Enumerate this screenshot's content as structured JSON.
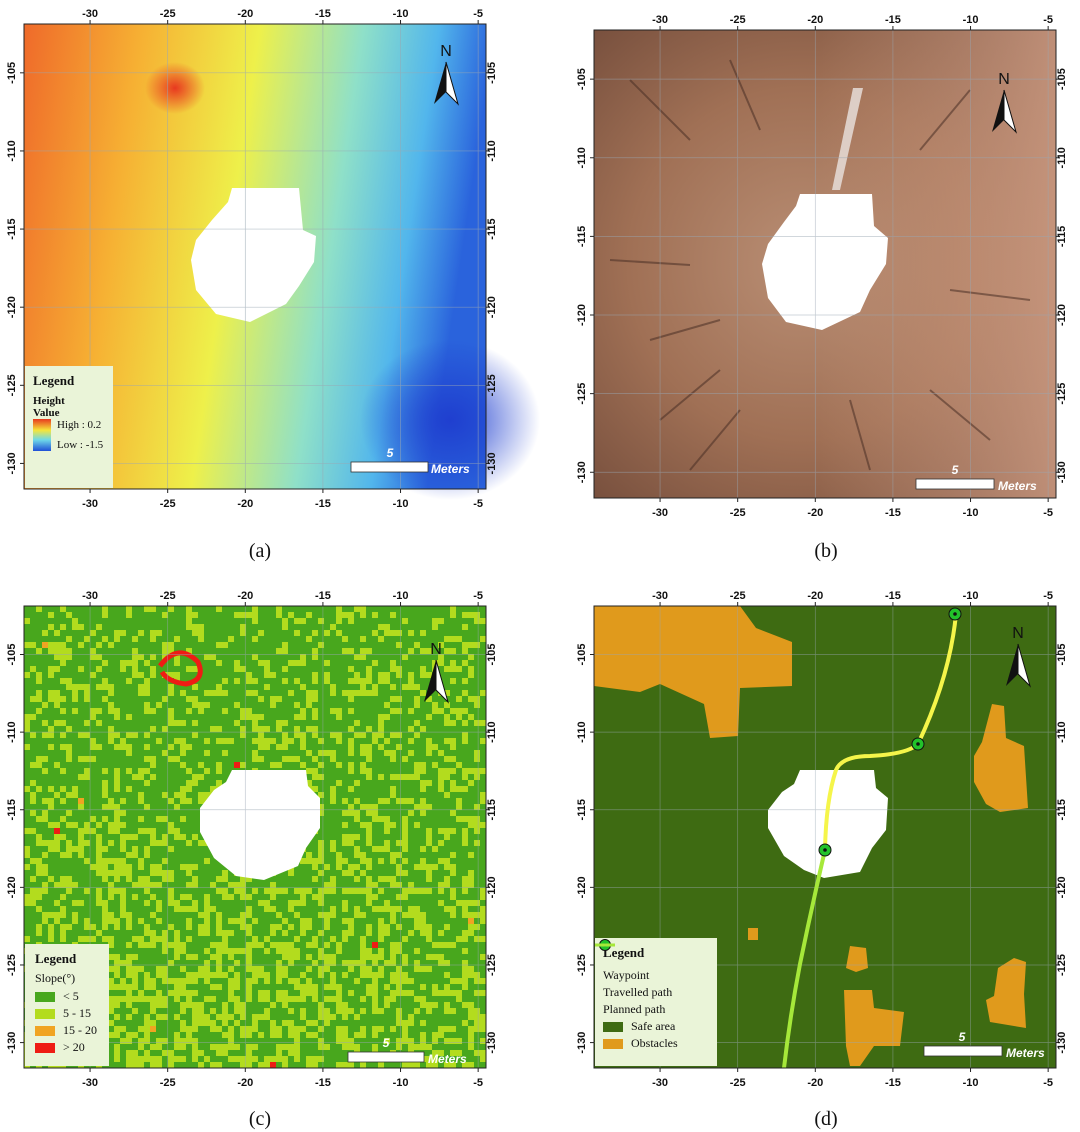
{
  "captions": {
    "a": "(a)",
    "b": "(b)",
    "c": "(c)",
    "d": "(d)"
  },
  "x_ticks": [
    "-30",
    "-25",
    "-20",
    "-15",
    "-10",
    "-5"
  ],
  "y_ticks": [
    "-105",
    "-110",
    "-115",
    "-120",
    "-125",
    "-130"
  ],
  "north_label": "N",
  "scale_bar": {
    "value": "5",
    "unit": "Meters"
  },
  "panel_a": {
    "legend_title": "Legend",
    "legend_subtitle": "Height",
    "legend_value_label": "Value",
    "high_label": "High : 0.2",
    "low_label": "Low : -1.5",
    "colors": {
      "high": "#e8391f",
      "mid": "#f7f03a",
      "low": "#1f4fd6"
    }
  },
  "panel_c": {
    "legend_title": "Legend",
    "legend_subtitle": "Slope(°)",
    "classes": [
      {
        "label": "< 5",
        "color": "#48a71d"
      },
      {
        "label": "5 - 15",
        "color": "#b3dc1e"
      },
      {
        "label": "15 - 20",
        "color": "#f0a422"
      },
      {
        "label": "> 20",
        "color": "#ee1c14"
      }
    ]
  },
  "panel_d": {
    "legend_title": "Legend",
    "items": [
      {
        "label": "Waypoint",
        "color": "#22c22a",
        "symbol": "waypoint"
      },
      {
        "label": "Travelled path",
        "color": "#f5f54a",
        "symbol": "line"
      },
      {
        "label": "Planned path",
        "color": "#a6e83a",
        "symbol": "line"
      },
      {
        "label": "Safe area",
        "color": "#3e6b12",
        "symbol": "fill"
      },
      {
        "label": "Obstacles",
        "color": "#e09a1c",
        "symbol": "fill"
      }
    ]
  }
}
